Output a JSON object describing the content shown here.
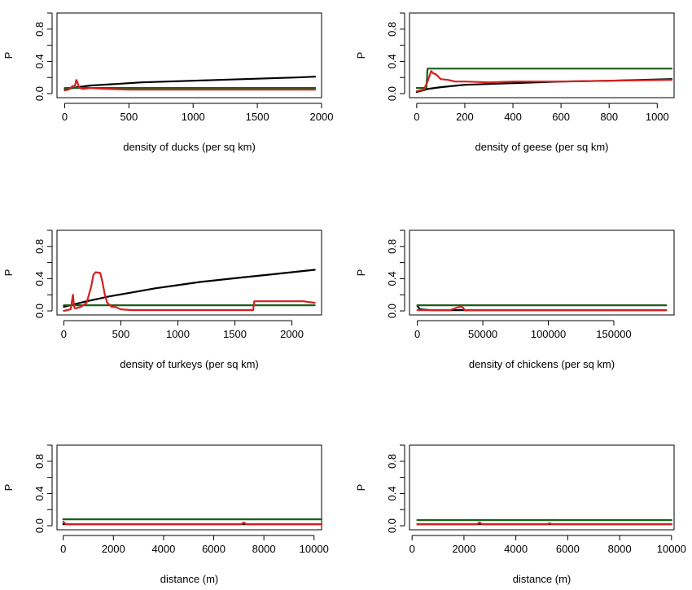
{
  "chart_data": [
    {
      "type": "line",
      "xlabel": "density of ducks (per sq km)",
      "ylabel": "P",
      "xlim": [
        -60,
        2000
      ],
      "ylim": [
        -0.05,
        1.0
      ],
      "xticks": [
        0,
        500,
        1000,
        1500,
        2000
      ],
      "xtick_labels": [
        "0",
        "500",
        "1000",
        "1500",
        "2000"
      ],
      "yticks": [
        0,
        0.4,
        0.8
      ],
      "yticks_minor": [
        0.2,
        0.6
      ],
      "ytick_labels": [
        "0.0",
        "0.4",
        "0.8"
      ],
      "yaxis_max": 1.0,
      "grid": false,
      "series": [
        {
          "color": "#000000",
          "x": [
            0,
            100,
            200,
            400,
            600,
            800,
            1000,
            1200,
            1400,
            1600,
            1800,
            1950
          ],
          "y": [
            0.05,
            0.08,
            0.1,
            0.12,
            0.14,
            0.15,
            0.16,
            0.17,
            0.18,
            0.19,
            0.2,
            0.21
          ]
        },
        {
          "color": "#1a5e1a",
          "x": [
            0,
            1950
          ],
          "y": [
            0.07,
            0.07
          ]
        },
        {
          "color": "#d62020",
          "x": [
            0,
            30,
            60,
            80,
            90,
            100,
            110,
            130,
            160,
            200,
            300,
            500,
            1000,
            1950
          ],
          "y": [
            0.04,
            0.05,
            0.09,
            0.1,
            0.17,
            0.14,
            0.08,
            0.06,
            0.06,
            0.07,
            0.06,
            0.05,
            0.05,
            0.05
          ]
        }
      ]
    },
    {
      "type": "line",
      "xlabel": "density of geese (per sq km)",
      "ylabel": "P",
      "xlim": [
        -30,
        1070
      ],
      "ylim": [
        -0.05,
        1.0
      ],
      "xticks": [
        0,
        200,
        400,
        600,
        800,
        1000
      ],
      "xtick_labels": [
        "0",
        "200",
        "400",
        "600",
        "800",
        "1000"
      ],
      "yticks": [
        0,
        0.4,
        0.8
      ],
      "yticks_minor": [
        0.2,
        0.6
      ],
      "ytick_labels": [
        "0.0",
        "0.4",
        "0.8"
      ],
      "yaxis_max": 1.0,
      "grid": false,
      "series": [
        {
          "color": "#000000",
          "x": [
            0,
            50,
            100,
            200,
            400,
            600,
            800,
            1060
          ],
          "y": [
            0.02,
            0.06,
            0.08,
            0.11,
            0.13,
            0.15,
            0.16,
            0.18
          ]
        },
        {
          "color": "#1a5e1a",
          "x": [
            0,
            40,
            45,
            1060
          ],
          "y": [
            0.07,
            0.07,
            0.31,
            0.31
          ]
        },
        {
          "color": "#d62020",
          "x": [
            0,
            30,
            45,
            60,
            70,
            80,
            100,
            130,
            160,
            200,
            300,
            400,
            600,
            800,
            1060
          ],
          "y": [
            0.03,
            0.05,
            0.15,
            0.28,
            0.25,
            0.24,
            0.18,
            0.17,
            0.15,
            0.15,
            0.14,
            0.15,
            0.15,
            0.16,
            0.17
          ]
        }
      ]
    },
    {
      "type": "line",
      "xlabel": "density of turkeys (per sq km)",
      "ylabel": "P",
      "xlim": [
        -60,
        2260
      ],
      "ylim": [
        -0.05,
        1.0
      ],
      "xticks": [
        0,
        500,
        1000,
        1500,
        2000
      ],
      "xtick_labels": [
        "0",
        "500",
        "1000",
        "1500",
        "2000"
      ],
      "yticks": [
        0,
        0.4,
        0.8
      ],
      "yticks_minor": [
        0.2,
        0.6
      ],
      "ytick_labels": [
        "0.0",
        "0.4",
        "0.8"
      ],
      "yaxis_max": 1.0,
      "grid": false,
      "series": [
        {
          "color": "#000000",
          "x": [
            0,
            200,
            400,
            600,
            800,
            1000,
            1200,
            1400,
            1600,
            1800,
            2000,
            2200
          ],
          "y": [
            0.05,
            0.12,
            0.18,
            0.23,
            0.28,
            0.32,
            0.36,
            0.39,
            0.42,
            0.45,
            0.48,
            0.51
          ]
        },
        {
          "color": "#1a5e1a",
          "x": [
            0,
            2200
          ],
          "y": [
            0.07,
            0.07
          ]
        },
        {
          "color": "#d62020",
          "x": [
            0,
            60,
            80,
            90,
            100,
            150,
            200,
            240,
            260,
            280,
            320,
            340,
            360,
            380,
            420,
            450,
            500,
            600,
            1000,
            1500,
            1660,
            1670,
            2000,
            2100,
            2200
          ],
          "y": [
            0.0,
            0.02,
            0.2,
            0.05,
            0.03,
            0.05,
            0.1,
            0.3,
            0.45,
            0.48,
            0.47,
            0.35,
            0.2,
            0.1,
            0.05,
            0.05,
            0.02,
            0.01,
            0.01,
            0.01,
            0.01,
            0.12,
            0.12,
            0.12,
            0.1
          ]
        }
      ]
    },
    {
      "type": "line",
      "xlabel": "density of chickens (per sq km)",
      "ylabel": "P",
      "xlim": [
        -6000,
        196000
      ],
      "ylim": [
        -0.05,
        1.0
      ],
      "xticks": [
        0,
        50000,
        100000,
        150000
      ],
      "xtick_labels": [
        "0",
        "50000",
        "100000",
        "150000"
      ],
      "yticks": [
        0,
        0.4,
        0.8
      ],
      "yticks_minor": [
        0.2,
        0.6
      ],
      "ytick_labels": [
        "0.0",
        "0.4",
        "0.8"
      ],
      "yaxis_max": 1.0,
      "grid": false,
      "series": [
        {
          "color": "#000000",
          "x": [
            0,
            2000,
            10000,
            50000,
            100000,
            190000
          ],
          "y": [
            0.06,
            0.02,
            0.01,
            0.01,
            0.01,
            0.01
          ]
        },
        {
          "color": "#1a5e1a",
          "x": [
            0,
            190000
          ],
          "y": [
            0.07,
            0.07
          ]
        },
        {
          "color": "#d62020",
          "x": [
            0,
            25000,
            30000,
            33000,
            35000,
            36000,
            40000,
            100000,
            190000
          ],
          "y": [
            0.01,
            0.01,
            0.04,
            0.05,
            0.04,
            0.01,
            0.01,
            0.01,
            0.01
          ]
        }
      ]
    },
    {
      "type": "line",
      "xlabel": "distance (m)",
      "ylabel": "P",
      "xlim": [
        -250,
        10300
      ],
      "ylim": [
        -0.05,
        1.0
      ],
      "xticks": [
        0,
        2000,
        4000,
        6000,
        8000,
        10000
      ],
      "xtick_labels": [
        "0",
        "2000",
        "4000",
        "6000",
        "8000",
        "10000"
      ],
      "yticks": [
        0,
        0.4,
        0.8
      ],
      "yticks_minor": [
        0.2,
        0.6
      ],
      "ytick_labels": [
        "0.0",
        "0.4",
        "0.8"
      ],
      "yaxis_max": 1.0,
      "grid": false,
      "series": [
        {
          "color": "#000000",
          "x": [
            0,
            10300
          ],
          "y": [
            0.02,
            0.02
          ]
        },
        {
          "color": "#1a5e1a",
          "x": [
            0,
            10300
          ],
          "y": [
            0.08,
            0.08
          ]
        },
        {
          "color": "#d62020",
          "x": [
            0,
            100,
            200,
            7100,
            7200,
            7300,
            10300
          ],
          "y": [
            0.05,
            0.02,
            0.02,
            0.02,
            0.04,
            0.02,
            0.02
          ]
        }
      ]
    },
    {
      "type": "line",
      "xlabel": "distance (m)",
      "ylabel": "P",
      "xlim": [
        -100,
        10100
      ],
      "ylim": [
        -0.05,
        1.0
      ],
      "xticks": [
        0,
        2000,
        4000,
        6000,
        8000,
        10000
      ],
      "xtick_labels": [
        "0",
        "2000",
        "4000",
        "6000",
        "8000",
        "10000"
      ],
      "yticks": [
        0,
        0.4,
        0.8
      ],
      "yticks_minor": [
        0.2,
        0.6
      ],
      "ytick_labels": [
        "0.0",
        "0.4",
        "0.8"
      ],
      "yaxis_max": 1.0,
      "grid": false,
      "series": [
        {
          "color": "#000000",
          "x": [
            200,
            10000
          ],
          "y": [
            0.02,
            0.02
          ]
        },
        {
          "color": "#1a5e1a",
          "x": [
            200,
            10000
          ],
          "y": [
            0.07,
            0.07
          ]
        },
        {
          "color": "#d62020",
          "x": [
            200,
            2500,
            2600,
            2700,
            5200,
            5300,
            5400,
            10000
          ],
          "y": [
            0.02,
            0.02,
            0.04,
            0.02,
            0.02,
            0.03,
            0.02,
            0.02
          ]
        }
      ]
    }
  ]
}
